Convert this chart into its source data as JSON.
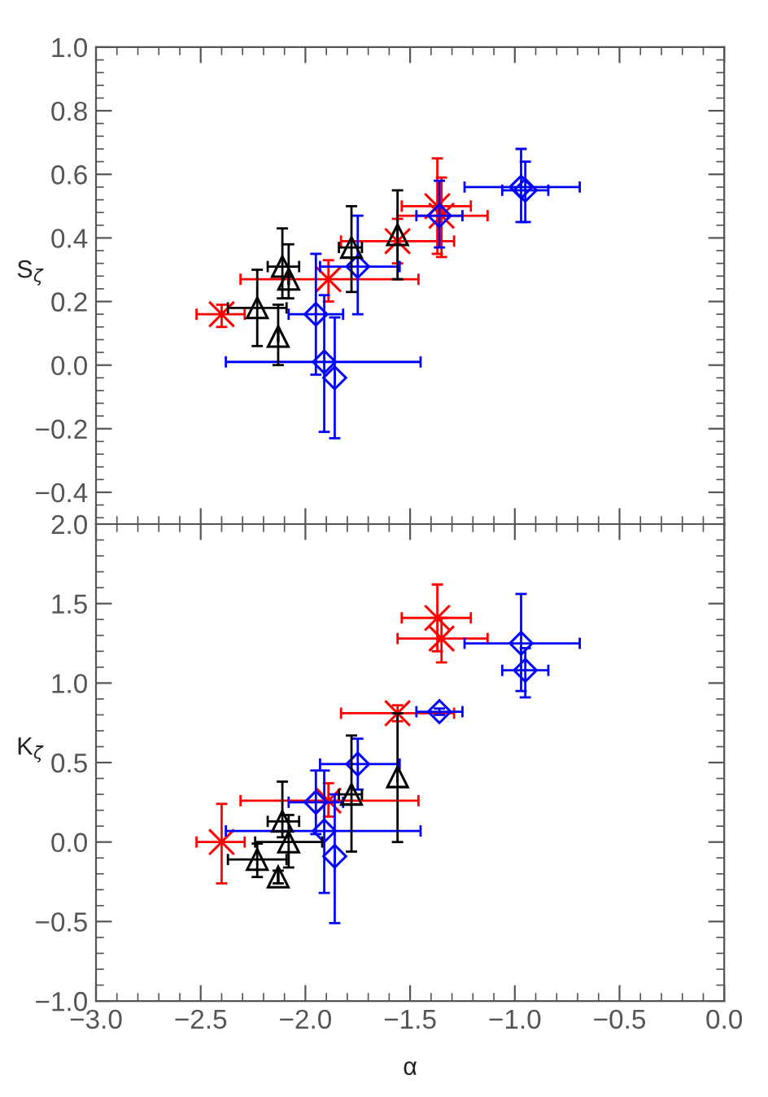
{
  "chart_data": [
    {
      "type": "scatter",
      "ylabel": "S$_{ζ}$",
      "xlim": [
        -3.0,
        0.0
      ],
      "ylim": [
        -0.5,
        1.0
      ],
      "yticks": [
        {
          "value": -0.4,
          "label": "−0.4"
        },
        {
          "value": -0.2,
          "label": "−0.2"
        },
        {
          "value": 0,
          "label": "0.0"
        },
        {
          "value": 0.2,
          "label": "0.2"
        },
        {
          "value": 0.4,
          "label": "0.4"
        },
        {
          "value": 0.6,
          "label": "0.6"
        },
        {
          "value": 0.8,
          "label": "0.8"
        },
        {
          "value": 1,
          "label": "1.0"
        }
      ],
      "xticks": [
        {
          "value": -3,
          "label": null
        },
        {
          "value": -2.5,
          "label": null
        },
        {
          "value": -2,
          "label": null
        },
        {
          "value": -1.5,
          "label": null
        },
        {
          "value": -1,
          "label": null
        },
        {
          "value": -0.5,
          "label": null
        },
        {
          "value": 0,
          "label": null
        }
      ],
      "tick_labels": "y",
      "grid": false,
      "legend": false,
      "series": [
        {
          "color": "#ff0000",
          "marker": "cross",
          "x": [
            -2.4,
            -1.89,
            -1.56,
            -1.37,
            -1.35
          ],
          "values": [
            0.16,
            0.27,
            0.39,
            0.5,
            0.47
          ],
          "xerrors": [
            [
              -2.52,
              -2.29
            ],
            [
              -2.31,
              -1.46
            ],
            [
              -1.83,
              -1.29
            ],
            [
              -1.54,
              -1.21
            ],
            [
              -1.56,
              -1.13
            ]
          ],
          "errors": [
            [
              0.12,
              0.19
            ],
            [
              0.2,
              0.33
            ],
            [
              0.32,
              0.46
            ],
            [
              0.35,
              0.65
            ],
            [
              0.34,
              0.59
            ]
          ]
        },
        {
          "color": "#0000ff",
          "marker": "diamond",
          "x": [
            -1.95,
            -1.91,
            -1.86,
            -1.75,
            -1.36,
            -0.97,
            -0.95
          ],
          "values": [
            0.16,
            0.01,
            -0.04,
            0.31,
            0.47,
            0.56,
            0.55
          ],
          "xerrors": [
            [
              -2.08,
              -1.82
            ],
            [
              -2.38,
              -1.45
            ],
            null,
            [
              -1.93,
              -1.55
            ],
            [
              -1.47,
              -1.25
            ],
            [
              -1.24,
              -0.69
            ],
            [
              -1.06,
              -0.84
            ]
          ],
          "errors": [
            [
              -0.03,
              0.35
            ],
            [
              -0.21,
              0.22
            ],
            [
              -0.23,
              0.15
            ],
            [
              0.16,
              0.47
            ],
            [
              0.37,
              0.58
            ],
            [
              0.45,
              0.68
            ],
            [
              0.45,
              0.64
            ]
          ]
        },
        {
          "color": "#000000",
          "marker": "triangle",
          "x": [
            -2.23,
            -2.13,
            -2.11,
            -2.08,
            -1.78,
            -1.56
          ],
          "values": [
            0.18,
            0.09,
            0.31,
            0.27,
            0.37,
            0.41
          ],
          "xerrors": [
            [
              -2.37,
              -2.09
            ],
            null,
            [
              -2.18,
              -2.03
            ],
            null,
            [
              -1.84,
              -1.73
            ],
            null
          ],
          "errors": [
            [
              0.06,
              0.3
            ],
            [
              0.0,
              0.19
            ],
            [
              0.21,
              0.43
            ],
            [
              0.21,
              0.38
            ],
            [
              0.23,
              0.5
            ],
            [
              0.27,
              0.55
            ]
          ]
        }
      ]
    },
    {
      "type": "scatter",
      "xlabel": "α",
      "ylabel": "K$_{ζ}$",
      "xlim": [
        -3.0,
        0.0
      ],
      "ylim": [
        -1.0,
        2.0
      ],
      "yticks": [
        {
          "value": -1,
          "label": "−1.0"
        },
        {
          "value": -0.5,
          "label": "−0.5"
        },
        {
          "value": 0,
          "label": "0.0"
        },
        {
          "value": 0.5,
          "label": "0.5"
        },
        {
          "value": 1,
          "label": "1.0"
        },
        {
          "value": 1.5,
          "label": "1.5"
        },
        {
          "value": 2,
          "label": "2.0"
        }
      ],
      "xticks": [
        {
          "value": -3,
          "label": "−3.0"
        },
        {
          "value": -2.5,
          "label": "−2.5"
        },
        {
          "value": -2,
          "label": "−2.0"
        },
        {
          "value": -1.5,
          "label": "−1.5"
        },
        {
          "value": -1,
          "label": "−1.0"
        },
        {
          "value": -0.5,
          "label": "−0.5"
        },
        {
          "value": 0,
          "label": "0.0"
        }
      ],
      "grid": false,
      "legend": false,
      "series": [
        {
          "color": "#ff0000",
          "marker": "cross",
          "x": [
            -2.4,
            -1.89,
            -1.56,
            -1.37,
            -1.35
          ],
          "values": [
            0.0,
            0.26,
            0.81,
            1.41,
            1.28
          ],
          "xerrors": [
            [
              -2.52,
              -2.29
            ],
            [
              -2.31,
              -1.46
            ],
            [
              -1.83,
              -1.29
            ],
            [
              -1.54,
              -1.21
            ],
            [
              -1.56,
              -1.13
            ]
          ],
          "errors": [
            [
              -0.26,
              0.24
            ],
            [
              0.16,
              0.37
            ],
            [
              0.76,
              0.86
            ],
            [
              1.2,
              1.62
            ],
            [
              1.13,
              1.41
            ]
          ]
        },
        {
          "color": "#0000ff",
          "marker": "diamond",
          "x": [
            -1.95,
            -1.91,
            -1.86,
            -1.75,
            -1.36,
            -0.97,
            -0.95
          ],
          "values": [
            0.25,
            0.07,
            -0.09,
            0.49,
            0.82,
            1.25,
            1.08
          ],
          "xerrors": [
            [
              -2.08,
              -1.82
            ],
            [
              -2.38,
              -1.45
            ],
            null,
            [
              -1.93,
              -1.55
            ],
            [
              -1.47,
              -1.25
            ],
            [
              -1.24,
              -0.69
            ],
            [
              -1.06,
              -0.84
            ]
          ],
          "errors": [
            [
              0.05,
              0.45
            ],
            [
              -0.32,
              0.45
            ],
            [
              -0.51,
              0.3
            ],
            [
              0.33,
              0.65
            ],
            [
              0.8,
              0.84
            ],
            [
              0.95,
              1.56
            ],
            [
              0.91,
              1.22
            ]
          ]
        },
        {
          "color": "#000000",
          "marker": "triangle",
          "x": [
            -2.23,
            -2.13,
            -2.11,
            -2.08,
            -1.78,
            -1.56
          ],
          "values": [
            -0.11,
            -0.22,
            0.13,
            0.0,
            0.3,
            0.41
          ],
          "xerrors": [
            [
              -2.37,
              -2.09
            ],
            null,
            [
              -2.18,
              -2.03
            ],
            [
              -2.24,
              -1.92
            ],
            [
              -1.84,
              -1.73
            ],
            null
          ],
          "errors": [
            [
              -0.22,
              -0.01
            ],
            [
              -0.26,
              -0.18
            ],
            [
              0.03,
              0.38
            ],
            [
              -0.16,
              0.17
            ],
            [
              -0.06,
              0.67
            ],
            [
              0.0,
              0.81
            ]
          ]
        }
      ]
    }
  ]
}
